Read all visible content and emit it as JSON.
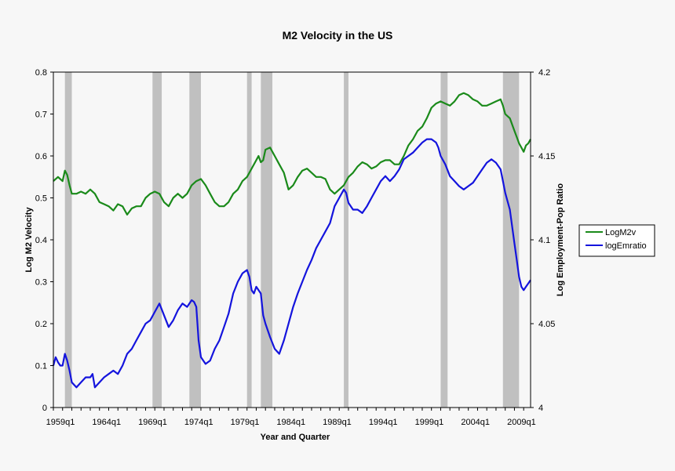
{
  "chart_data": {
    "type": "line",
    "title": "M2 Velocity in the US",
    "xlabel": "Year and Quarter",
    "ylabel": "Log M2 Velocity",
    "y2label": "Log Employment-Pop Ratio",
    "x_tick_labels": [
      "1959q1",
      "1964q1",
      "1969q1",
      "1974q1",
      "1979q1",
      "1984q1",
      "1989q1",
      "1994q1",
      "1999q1",
      "2004q1",
      "2009q1"
    ],
    "x_tick_years": [
      1959,
      1964,
      1969,
      1974,
      1979,
      1984,
      1989,
      1994,
      1999,
      2004,
      2009
    ],
    "xlim": [
      1959,
      2010.75
    ],
    "ylim": [
      0,
      0.8
    ],
    "y_ticks": [
      0,
      0.1,
      0.2,
      0.3,
      0.4,
      0.5,
      0.6,
      0.7,
      0.8
    ],
    "y_tick_labels": [
      "0",
      "0.1",
      "0.2",
      "0.3",
      "0.4",
      "0.5",
      "0.6",
      "0.7",
      "0.8"
    ],
    "y2lim": [
      4,
      4.2
    ],
    "y2_ticks": [
      4,
      4.05,
      4.1,
      4.15,
      4.2
    ],
    "y2_tick_labels": [
      "4",
      "4.05",
      "4.1",
      "4.15",
      "4.2"
    ],
    "legend_position": "right",
    "recessions": [
      [
        1960.25,
        1961.0
      ],
      [
        1969.75,
        1970.75
      ],
      [
        1973.75,
        1975.0
      ],
      [
        1980.0,
        1980.5
      ],
      [
        1981.5,
        1982.75
      ],
      [
        1990.5,
        1991.0
      ],
      [
        2001.0,
        2001.75
      ],
      [
        2007.75,
        2009.5
      ]
    ],
    "series": [
      {
        "name": "LogM2v",
        "axis": "left",
        "color": "#1a8a1a",
        "points": [
          [
            1959.0,
            0.54
          ],
          [
            1959.5,
            0.55
          ],
          [
            1960.0,
            0.54
          ],
          [
            1960.25,
            0.565
          ],
          [
            1960.5,
            0.555
          ],
          [
            1960.75,
            0.53
          ],
          [
            1961.0,
            0.51
          ],
          [
            1961.5,
            0.51
          ],
          [
            1962.0,
            0.515
          ],
          [
            1962.5,
            0.51
          ],
          [
            1963.0,
            0.52
          ],
          [
            1963.5,
            0.51
          ],
          [
            1964.0,
            0.49
          ],
          [
            1964.5,
            0.485
          ],
          [
            1965.0,
            0.48
          ],
          [
            1965.5,
            0.47
          ],
          [
            1966.0,
            0.485
          ],
          [
            1966.5,
            0.48
          ],
          [
            1967.0,
            0.46
          ],
          [
            1967.5,
            0.475
          ],
          [
            1968.0,
            0.48
          ],
          [
            1968.5,
            0.48
          ],
          [
            1969.0,
            0.5
          ],
          [
            1969.5,
            0.51
          ],
          [
            1970.0,
            0.515
          ],
          [
            1970.5,
            0.51
          ],
          [
            1971.0,
            0.49
          ],
          [
            1971.5,
            0.48
          ],
          [
            1972.0,
            0.5
          ],
          [
            1972.5,
            0.51
          ],
          [
            1973.0,
            0.5
          ],
          [
            1973.5,
            0.51
          ],
          [
            1974.0,
            0.53
          ],
          [
            1974.5,
            0.54
          ],
          [
            1975.0,
            0.545
          ],
          [
            1975.5,
            0.53
          ],
          [
            1976.0,
            0.51
          ],
          [
            1976.5,
            0.49
          ],
          [
            1977.0,
            0.48
          ],
          [
            1977.5,
            0.48
          ],
          [
            1978.0,
            0.49
          ],
          [
            1978.5,
            0.51
          ],
          [
            1979.0,
            0.52
          ],
          [
            1979.5,
            0.54
          ],
          [
            1980.0,
            0.55
          ],
          [
            1980.5,
            0.57
          ],
          [
            1981.0,
            0.59
          ],
          [
            1981.25,
            0.6
          ],
          [
            1981.5,
            0.585
          ],
          [
            1981.75,
            0.59
          ],
          [
            1982.0,
            0.615
          ],
          [
            1982.5,
            0.62
          ],
          [
            1983.0,
            0.6
          ],
          [
            1983.5,
            0.58
          ],
          [
            1984.0,
            0.56
          ],
          [
            1984.5,
            0.52
          ],
          [
            1985.0,
            0.53
          ],
          [
            1985.5,
            0.55
          ],
          [
            1986.0,
            0.565
          ],
          [
            1986.5,
            0.57
          ],
          [
            1987.0,
            0.56
          ],
          [
            1987.5,
            0.55
          ],
          [
            1988.0,
            0.55
          ],
          [
            1988.5,
            0.545
          ],
          [
            1989.0,
            0.52
          ],
          [
            1989.5,
            0.51
          ],
          [
            1990.0,
            0.52
          ],
          [
            1990.5,
            0.53
          ],
          [
            1991.0,
            0.55
          ],
          [
            1991.5,
            0.56
          ],
          [
            1992.0,
            0.575
          ],
          [
            1992.5,
            0.585
          ],
          [
            1993.0,
            0.58
          ],
          [
            1993.5,
            0.57
          ],
          [
            1994.0,
            0.575
          ],
          [
            1994.5,
            0.585
          ],
          [
            1995.0,
            0.59
          ],
          [
            1995.5,
            0.59
          ],
          [
            1996.0,
            0.58
          ],
          [
            1996.5,
            0.58
          ],
          [
            1997.0,
            0.6
          ],
          [
            1997.5,
            0.625
          ],
          [
            1998.0,
            0.64
          ],
          [
            1998.5,
            0.66
          ],
          [
            1999.0,
            0.67
          ],
          [
            1999.5,
            0.69
          ],
          [
            2000.0,
            0.715
          ],
          [
            2000.5,
            0.725
          ],
          [
            2001.0,
            0.73
          ],
          [
            2001.5,
            0.725
          ],
          [
            2002.0,
            0.72
          ],
          [
            2002.5,
            0.73
          ],
          [
            2003.0,
            0.745
          ],
          [
            2003.5,
            0.75
          ],
          [
            2004.0,
            0.745
          ],
          [
            2004.5,
            0.735
          ],
          [
            2005.0,
            0.73
          ],
          [
            2005.5,
            0.72
          ],
          [
            2006.0,
            0.72
          ],
          [
            2006.5,
            0.725
          ],
          [
            2007.0,
            0.73
          ],
          [
            2007.5,
            0.735
          ],
          [
            2007.75,
            0.72
          ],
          [
            2008.0,
            0.7
          ],
          [
            2008.5,
            0.69
          ],
          [
            2009.0,
            0.66
          ],
          [
            2009.25,
            0.645
          ],
          [
            2009.5,
            0.63
          ],
          [
            2009.75,
            0.62
          ],
          [
            2010.0,
            0.61
          ],
          [
            2010.25,
            0.625
          ],
          [
            2010.5,
            0.63
          ],
          [
            2010.75,
            0.64
          ]
        ]
      },
      {
        "name": "logEmratio",
        "axis": "right",
        "color": "#1414dd",
        "points": [
          [
            1959.0,
            4.025
          ],
          [
            1959.25,
            4.03
          ],
          [
            1959.5,
            4.027
          ],
          [
            1959.75,
            4.025
          ],
          [
            1960.0,
            4.025
          ],
          [
            1960.25,
            4.032
          ],
          [
            1960.5,
            4.028
          ],
          [
            1960.75,
            4.022
          ],
          [
            1961.0,
            4.015
          ],
          [
            1961.5,
            4.012
          ],
          [
            1962.0,
            4.015
          ],
          [
            1962.5,
            4.018
          ],
          [
            1963.0,
            4.018
          ],
          [
            1963.25,
            4.02
          ],
          [
            1963.5,
            4.012
          ],
          [
            1964.0,
            4.015
          ],
          [
            1964.5,
            4.018
          ],
          [
            1965.0,
            4.02
          ],
          [
            1965.5,
            4.022
          ],
          [
            1966.0,
            4.02
          ],
          [
            1966.5,
            4.025
          ],
          [
            1967.0,
            4.032
          ],
          [
            1967.5,
            4.035
          ],
          [
            1968.0,
            4.04
          ],
          [
            1968.5,
            4.045
          ],
          [
            1969.0,
            4.05
          ],
          [
            1969.5,
            4.052
          ],
          [
            1970.0,
            4.057
          ],
          [
            1970.5,
            4.062
          ],
          [
            1971.0,
            4.055
          ],
          [
            1971.5,
            4.048
          ],
          [
            1972.0,
            4.052
          ],
          [
            1972.5,
            4.058
          ],
          [
            1973.0,
            4.062
          ],
          [
            1973.5,
            4.06
          ],
          [
            1974.0,
            4.064
          ],
          [
            1974.25,
            4.063
          ],
          [
            1974.5,
            4.06
          ],
          [
            1974.75,
            4.04
          ],
          [
            1975.0,
            4.03
          ],
          [
            1975.5,
            4.026
          ],
          [
            1976.0,
            4.028
          ],
          [
            1976.5,
            4.035
          ],
          [
            1977.0,
            4.04
          ],
          [
            1977.5,
            4.048
          ],
          [
            1978.0,
            4.056
          ],
          [
            1978.5,
            4.068
          ],
          [
            1979.0,
            4.075
          ],
          [
            1979.5,
            4.08
          ],
          [
            1980.0,
            4.082
          ],
          [
            1980.25,
            4.078
          ],
          [
            1980.5,
            4.07
          ],
          [
            1980.75,
            4.068
          ],
          [
            1981.0,
            4.072
          ],
          [
            1981.5,
            4.068
          ],
          [
            1981.75,
            4.055
          ],
          [
            1982.0,
            4.05
          ],
          [
            1982.5,
            4.042
          ],
          [
            1983.0,
            4.035
          ],
          [
            1983.5,
            4.032
          ],
          [
            1984.0,
            4.04
          ],
          [
            1984.5,
            4.05
          ],
          [
            1985.0,
            4.06
          ],
          [
            1985.5,
            4.068
          ],
          [
            1986.0,
            4.075
          ],
          [
            1986.5,
            4.082
          ],
          [
            1987.0,
            4.088
          ],
          [
            1987.5,
            4.095
          ],
          [
            1988.0,
            4.1
          ],
          [
            1988.5,
            4.105
          ],
          [
            1989.0,
            4.11
          ],
          [
            1989.5,
            4.12
          ],
          [
            1990.0,
            4.125
          ],
          [
            1990.5,
            4.13
          ],
          [
            1990.75,
            4.128
          ],
          [
            1991.0,
            4.122
          ],
          [
            1991.5,
            4.118
          ],
          [
            1992.0,
            4.118
          ],
          [
            1992.5,
            4.116
          ],
          [
            1993.0,
            4.12
          ],
          [
            1993.5,
            4.125
          ],
          [
            1994.0,
            4.13
          ],
          [
            1994.5,
            4.135
          ],
          [
            1995.0,
            4.138
          ],
          [
            1995.5,
            4.135
          ],
          [
            1996.0,
            4.138
          ],
          [
            1996.5,
            4.142
          ],
          [
            1997.0,
            4.148
          ],
          [
            1997.5,
            4.15
          ],
          [
            1998.0,
            4.152
          ],
          [
            1998.5,
            4.155
          ],
          [
            1999.0,
            4.158
          ],
          [
            1999.5,
            4.16
          ],
          [
            2000.0,
            4.16
          ],
          [
            2000.5,
            4.158
          ],
          [
            2000.75,
            4.155
          ],
          [
            2001.0,
            4.15
          ],
          [
            2001.5,
            4.145
          ],
          [
            2002.0,
            4.138
          ],
          [
            2002.5,
            4.135
          ],
          [
            2003.0,
            4.132
          ],
          [
            2003.5,
            4.13
          ],
          [
            2004.0,
            4.132
          ],
          [
            2004.5,
            4.134
          ],
          [
            2005.0,
            4.138
          ],
          [
            2005.5,
            4.142
          ],
          [
            2006.0,
            4.146
          ],
          [
            2006.5,
            4.148
          ],
          [
            2007.0,
            4.146
          ],
          [
            2007.5,
            4.142
          ],
          [
            2007.75,
            4.135
          ],
          [
            2008.0,
            4.128
          ],
          [
            2008.5,
            4.118
          ],
          [
            2009.0,
            4.098
          ],
          [
            2009.25,
            4.088
          ],
          [
            2009.5,
            4.078
          ],
          [
            2009.75,
            4.072
          ],
          [
            2010.0,
            4.07
          ],
          [
            2010.25,
            4.072
          ],
          [
            2010.5,
            4.074
          ],
          [
            2010.75,
            4.076
          ]
        ]
      }
    ]
  }
}
